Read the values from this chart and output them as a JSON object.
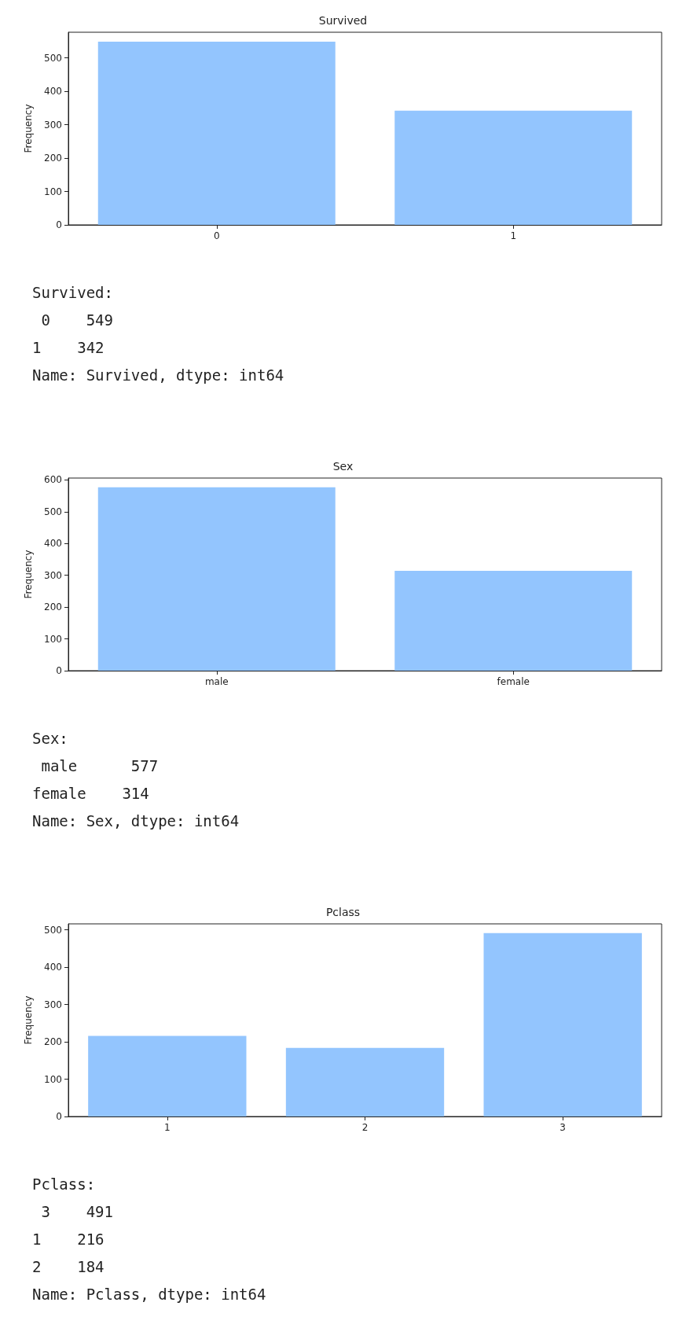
{
  "chart_data": [
    {
      "type": "bar",
      "title": "Survived",
      "ylabel": "Frequency",
      "categories": [
        "0",
        "1"
      ],
      "values": [
        549,
        342
      ],
      "color": "#93c5fe",
      "ylim": [
        0,
        577
      ],
      "yticks": [
        0,
        100,
        200,
        300,
        400,
        500
      ],
      "grid": false,
      "annotations": [
        "Survived:",
        " 0    549",
        "1    342",
        "Name: Survived, dtype: int64"
      ]
    },
    {
      "type": "bar",
      "title": "Sex",
      "ylabel": "Frequency",
      "categories": [
        "male",
        "female"
      ],
      "values": [
        577,
        314
      ],
      "color": "#93c5fe",
      "ylim": [
        0,
        606
      ],
      "yticks": [
        0,
        100,
        200,
        300,
        400,
        500,
        600
      ],
      "grid": false,
      "annotations": [
        "Sex:",
        " male      577",
        "female    314",
        "Name: Sex, dtype: int64"
      ]
    },
    {
      "type": "bar",
      "title": "Pclass",
      "ylabel": "Frequency",
      "categories": [
        "1",
        "2",
        "3"
      ],
      "values": [
        216,
        184,
        491
      ],
      "color": "#93c5fe",
      "ylim": [
        0,
        516
      ],
      "yticks": [
        0,
        100,
        200,
        300,
        400,
        500
      ],
      "grid": false,
      "annotations": [
        "Pclass:",
        " 3    491",
        "1    216",
        "2    184",
        "Name: Pclass, dtype: int64"
      ]
    }
  ]
}
